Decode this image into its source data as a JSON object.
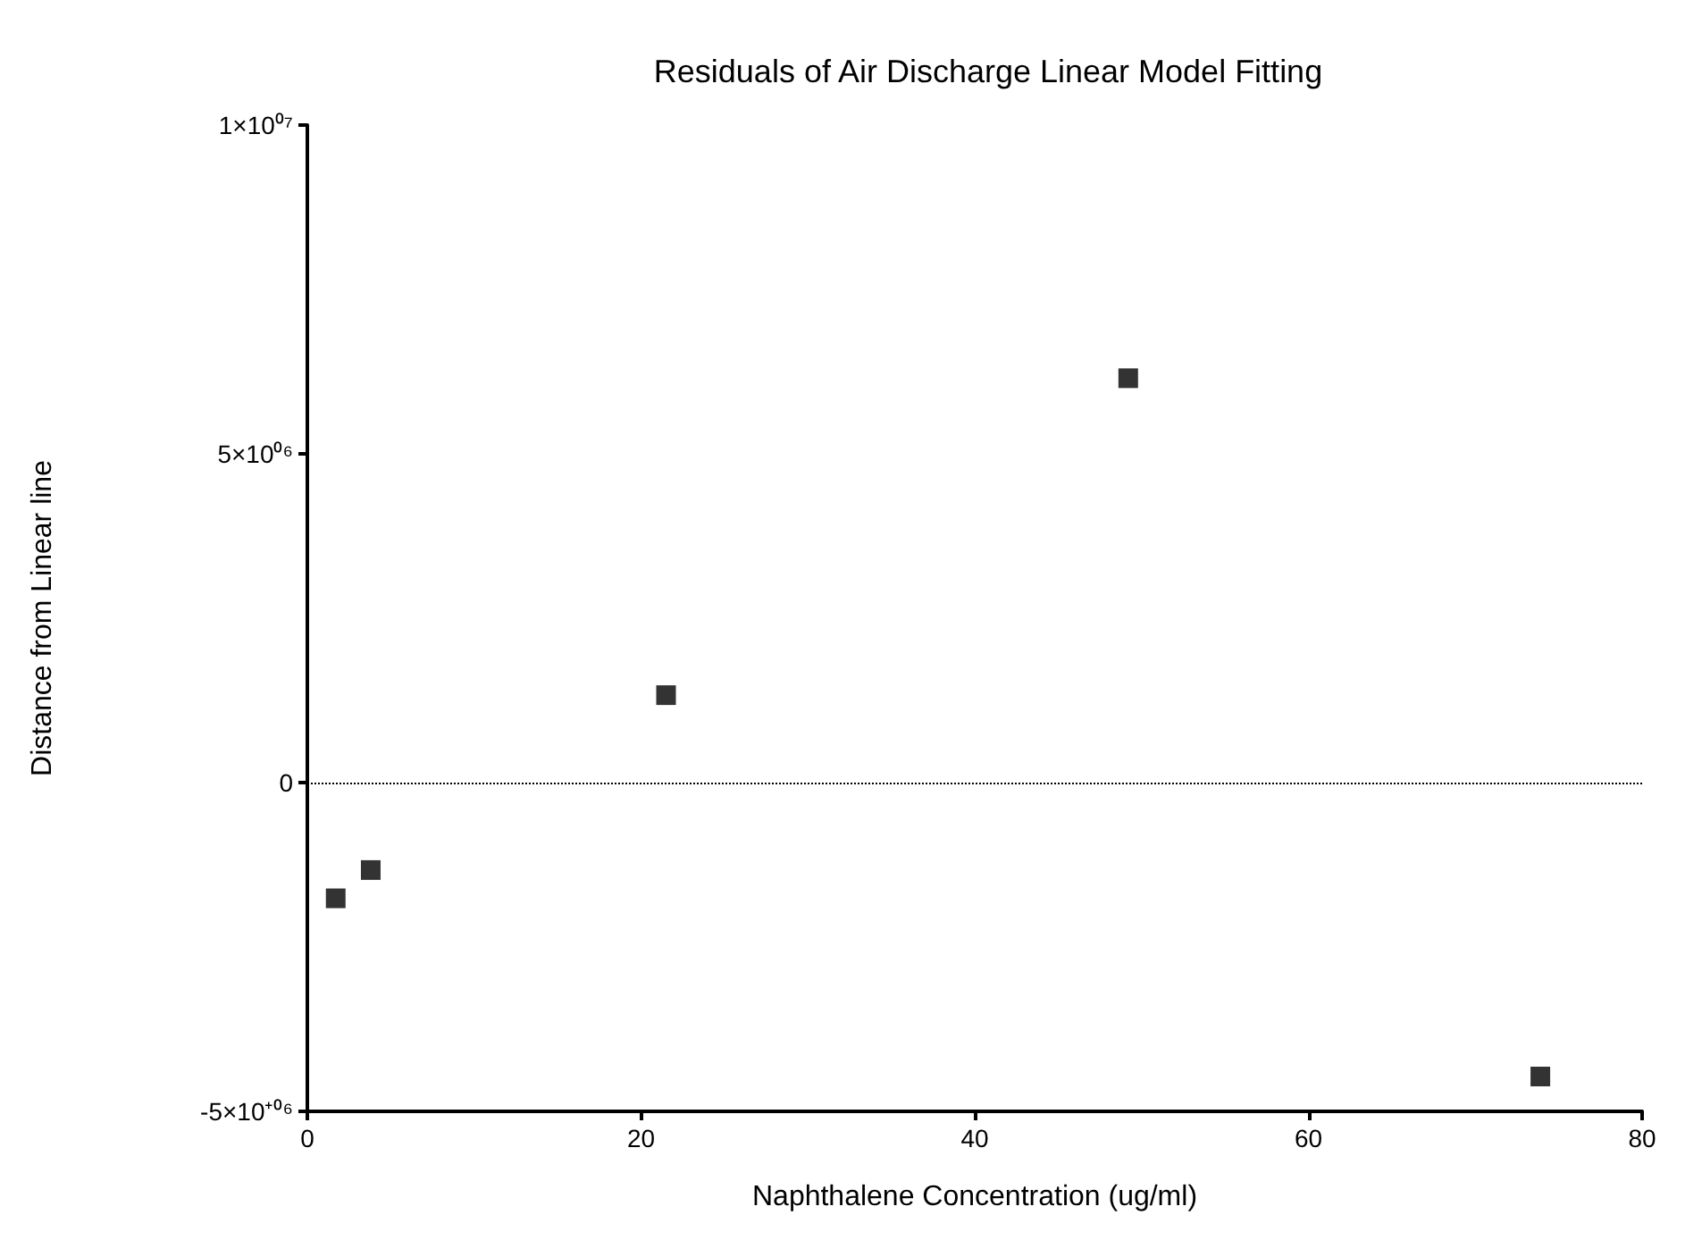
{
  "chart_data": {
    "type": "scatter",
    "title": "Residuals of Air Discharge Linear Model Fitting",
    "xlabel": "Naphthalene Concentration (ug/ml)",
    "ylabel": "Distance from Linear line",
    "x": [
      1.7,
      3.8,
      21.5,
      49.2,
      73.9
    ],
    "values": [
      -1760000,
      -1330000,
      1330000,
      6150000,
      -4470000
    ],
    "color": "#000000",
    "marker": "square",
    "xlim": [
      0,
      80
    ],
    "xticks": [
      0,
      20,
      40,
      60,
      80
    ],
    "ylim": [
      -5000000,
      10000000
    ],
    "yticks": [
      {
        "value": -5000000,
        "label": "-5×10⁺⁰⁶"
      },
      {
        "value": 0,
        "label": "0"
      },
      {
        "value": 5000000,
        "label": "5×10⁰⁶"
      },
      {
        "value": 10000000,
        "label": "1×10⁰⁷"
      }
    ],
    "ref_lines": [
      {
        "axis": "y",
        "value": 0,
        "line_style": "dotted",
        "color": "#000000"
      }
    ],
    "grid": false
  }
}
